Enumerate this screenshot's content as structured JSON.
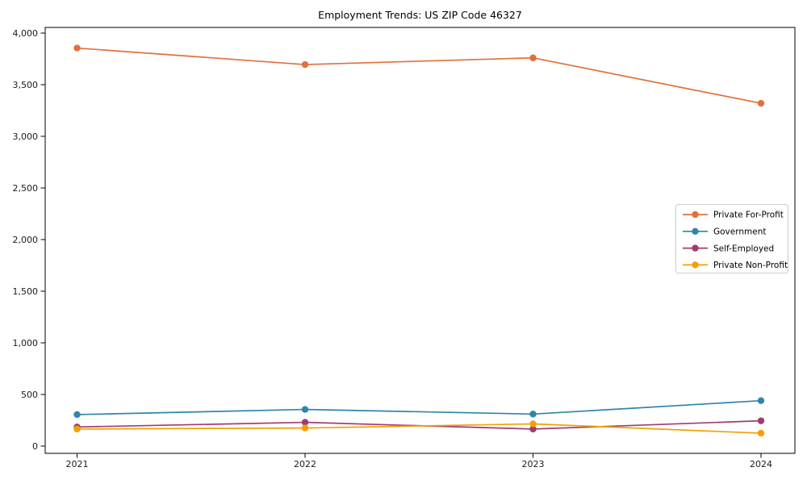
{
  "figure": {
    "background_color": "#ffffff",
    "axes_color": "#000000",
    "tick_label_color": "#1a1a1a"
  },
  "chart_data": {
    "type": "line",
    "title": "Employment Trends: US ZIP Code 46327",
    "xlabel": "",
    "ylabel": "",
    "x": [
      2021,
      2022,
      2023,
      2024
    ],
    "series": [
      {
        "name": "Private For-Profit",
        "color": "#E1703C",
        "values": [
          3855,
          3695,
          3760,
          3320
        ]
      },
      {
        "name": "Government",
        "color": "#2E86AB",
        "values": [
          305,
          355,
          310,
          440
        ]
      },
      {
        "name": "Self-Employed",
        "color": "#A23B72",
        "values": [
          185,
          230,
          165,
          245
        ]
      },
      {
        "name": "Private Non-Profit",
        "color": "#F2A104",
        "values": [
          165,
          175,
          215,
          125
        ]
      }
    ],
    "ylim": [
      0,
      4000
    ],
    "yticks": [
      0,
      500,
      1000,
      1500,
      2000,
      2500,
      3000,
      3500,
      4000
    ],
    "grid": false,
    "marker": "circle",
    "legend": {
      "position": "right-center",
      "border_color": "#cccccc",
      "background": "#ffffff"
    }
  }
}
